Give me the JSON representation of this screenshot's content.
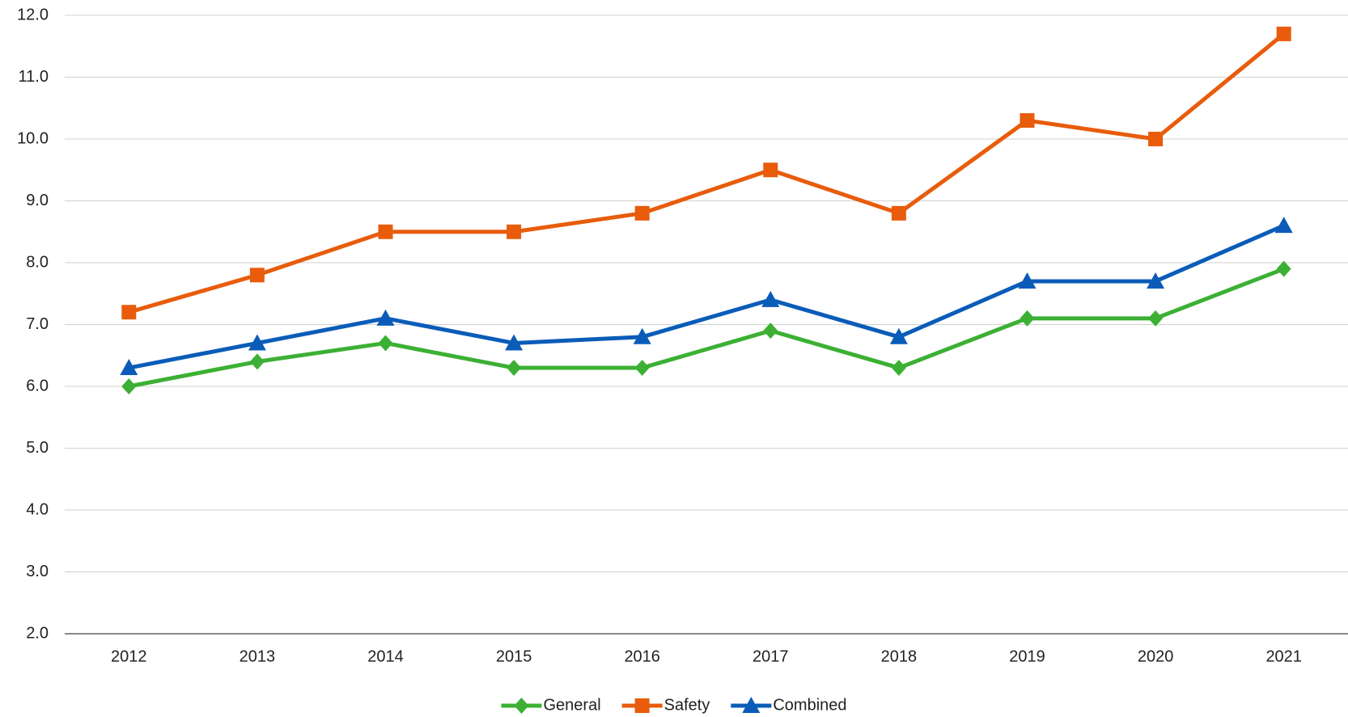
{
  "chart_data": {
    "type": "line",
    "categories": [
      "2012",
      "2013",
      "2014",
      "2015",
      "2016",
      "2017",
      "2018",
      "2019",
      "2020",
      "2021"
    ],
    "series": [
      {
        "name": "General",
        "color": "#3cb034",
        "marker": "diamond",
        "values": [
          6.0,
          6.4,
          6.7,
          6.3,
          6.3,
          6.9,
          6.3,
          7.1,
          7.1,
          7.9
        ]
      },
      {
        "name": "Safety",
        "color": "#e85c0c",
        "marker": "square",
        "values": [
          7.2,
          7.8,
          8.5,
          8.5,
          8.8,
          9.5,
          8.8,
          10.3,
          10.0,
          11.7
        ]
      },
      {
        "name": "Combined",
        "color": "#0a5cb8",
        "marker": "triangle",
        "values": [
          6.3,
          6.7,
          7.1,
          6.7,
          6.8,
          7.4,
          6.8,
          7.7,
          7.7,
          8.6
        ]
      }
    ],
    "ylim": [
      2,
      12
    ],
    "yticks": [
      {
        "value": 2,
        "label": "2.0"
      },
      {
        "value": 3,
        "label": "3.0"
      },
      {
        "value": 4,
        "label": "4.0"
      },
      {
        "value": 5,
        "label": "5.0"
      },
      {
        "value": 6,
        "label": "6.0"
      },
      {
        "value": 7,
        "label": "7.0"
      },
      {
        "value": 8,
        "label": "8.0"
      },
      {
        "value": 9,
        "label": "9.0"
      },
      {
        "value": 10,
        "label": "10.0"
      },
      {
        "value": 11,
        "label": "11.0"
      },
      {
        "value": 12,
        "label": "12.0"
      }
    ],
    "grid": true,
    "legend": "bottom"
  }
}
